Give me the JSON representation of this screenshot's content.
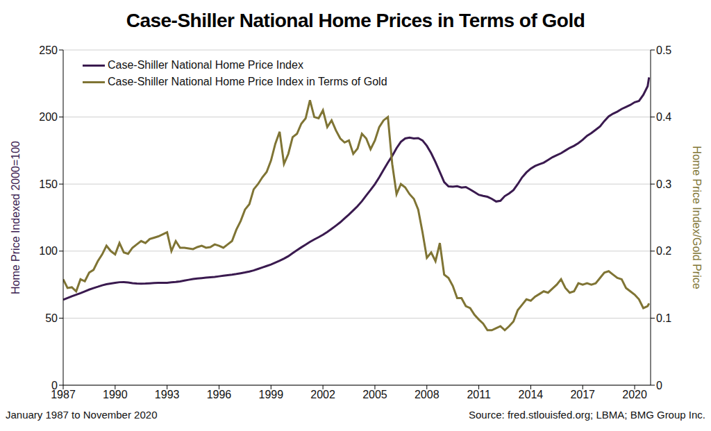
{
  "chart_data": {
    "type": "line",
    "title": "Case-Shiller National Home Prices in Terms of Gold",
    "ylabel": "Home Price Indexed 2000=100",
    "y2label": "Home Price Index/Gold Price",
    "annotations": [
      "January 1987 to November 2020",
      "Source: fred.stlouisfed.org; LBMA; BMG Group Inc."
    ],
    "x": [
      1987,
      1987.25,
      1987.5,
      1987.75,
      1988,
      1988.25,
      1988.5,
      1988.75,
      1989,
      1989.25,
      1989.5,
      1989.75,
      1990,
      1990.25,
      1990.5,
      1990.75,
      1991,
      1991.25,
      1991.5,
      1991.75,
      1992,
      1992.25,
      1992.5,
      1992.75,
      1993,
      1993.25,
      1993.5,
      1993.75,
      1994,
      1994.25,
      1994.5,
      1994.75,
      1995,
      1995.25,
      1995.5,
      1995.75,
      1996,
      1996.25,
      1996.5,
      1996.75,
      1997,
      1997.25,
      1997.5,
      1997.75,
      1998,
      1998.25,
      1998.5,
      1998.75,
      1999,
      1999.25,
      1999.5,
      1999.75,
      2000,
      2000.25,
      2000.5,
      2000.75,
      2001,
      2001.25,
      2001.5,
      2001.75,
      2002,
      2002.25,
      2002.5,
      2002.75,
      2003,
      2003.25,
      2003.5,
      2003.75,
      2004,
      2004.25,
      2004.5,
      2004.75,
      2005,
      2005.25,
      2005.5,
      2005.75,
      2006,
      2006.25,
      2006.5,
      2006.75,
      2007,
      2007.25,
      2007.5,
      2007.75,
      2008,
      2008.25,
      2008.5,
      2008.75,
      2009,
      2009.25,
      2009.5,
      2009.75,
      2010,
      2010.25,
      2010.5,
      2010.75,
      2011,
      2011.25,
      2011.5,
      2011.75,
      2012,
      2012.25,
      2012.5,
      2012.75,
      2013,
      2013.25,
      2013.5,
      2013.75,
      2014,
      2014.25,
      2014.5,
      2014.75,
      2015,
      2015.25,
      2015.5,
      2015.75,
      2016,
      2016.25,
      2016.5,
      2016.75,
      2017,
      2017.25,
      2017.5,
      2017.75,
      2018,
      2018.25,
      2018.5,
      2018.75,
      2019,
      2019.25,
      2019.5,
      2019.75,
      2020,
      2020.25,
      2020.5,
      2020.75,
      2020.83
    ],
    "series": [
      {
        "name": "Case-Shiller National Home Price Index",
        "color": "#3a1a4f",
        "values": [
          63.7,
          65.0,
          66.3,
          67.5,
          68.6,
          70.0,
          71.3,
          72.4,
          73.4,
          74.5,
          75.3,
          75.8,
          76.3,
          76.8,
          76.9,
          76.6,
          76.1,
          75.8,
          75.7,
          75.8,
          76.0,
          76.2,
          76.3,
          76.3,
          76.4,
          76.7,
          77.0,
          77.4,
          78.0,
          78.6,
          79.2,
          79.6,
          79.9,
          80.2,
          80.5,
          80.8,
          81.2,
          81.6,
          82.0,
          82.4,
          82.9,
          83.5,
          84.1,
          84.8,
          85.6,
          86.7,
          87.8,
          88.9,
          90.0,
          91.4,
          92.8,
          94.4,
          96.2,
          98.5,
          100.7,
          102.8,
          104.8,
          106.9,
          108.7,
          110.4,
          112.2,
          114.3,
          116.6,
          119.0,
          121.5,
          124.4,
          127.3,
          130.4,
          133.5,
          137.2,
          141.5,
          145.6,
          149.9,
          155.0,
          160.6,
          166.0,
          171.0,
          176.8,
          181.5,
          184.0,
          184.6,
          184.0,
          184.3,
          182.5,
          178.5,
          173.0,
          166.3,
          159.0,
          151.5,
          148.3,
          148.0,
          148.4,
          147.4,
          147.8,
          146.0,
          144.0,
          142.0,
          141.2,
          140.5,
          139.0,
          137.0,
          137.5,
          141.0,
          143.0,
          145.5,
          150.0,
          155.0,
          158.7,
          161.5,
          163.5,
          164.8,
          166.0,
          168.0,
          170.0,
          171.5,
          173.0,
          175.0,
          177.0,
          178.5,
          180.5,
          183.0,
          186.0,
          188.0,
          190.5,
          193.0,
          197.0,
          200.5,
          202.5,
          204.0,
          206.0,
          207.5,
          209.0,
          211.0,
          212.0,
          216.5,
          223.0,
          229.5
        ]
      },
      {
        "name": "Case-Shiller National Home Price Index in Terms of Gold",
        "color": "#7f7434",
        "axis": "y2",
        "values": [
          0.158,
          0.145,
          0.146,
          0.14,
          0.158,
          0.155,
          0.168,
          0.172,
          0.185,
          0.195,
          0.208,
          0.2,
          0.195,
          0.212,
          0.198,
          0.196,
          0.205,
          0.21,
          0.215,
          0.212,
          0.218,
          0.22,
          0.222,
          0.225,
          0.228,
          0.2,
          0.215,
          0.205,
          0.205,
          0.204,
          0.203,
          0.206,
          0.208,
          0.205,
          0.206,
          0.21,
          0.208,
          0.205,
          0.21,
          0.215,
          0.232,
          0.245,
          0.262,
          0.27,
          0.292,
          0.3,
          0.31,
          0.318,
          0.335,
          0.36,
          0.378,
          0.33,
          0.345,
          0.37,
          0.375,
          0.39,
          0.398,
          0.425,
          0.4,
          0.398,
          0.41,
          0.385,
          0.395,
          0.38,
          0.368,
          0.362,
          0.365,
          0.345,
          0.353,
          0.375,
          0.368,
          0.352,
          0.365,
          0.385,
          0.395,
          0.4,
          0.33,
          0.285,
          0.3,
          0.295,
          0.285,
          0.278,
          0.262,
          0.228,
          0.19,
          0.198,
          0.185,
          0.212,
          0.165,
          0.16,
          0.148,
          0.13,
          0.13,
          0.118,
          0.115,
          0.105,
          0.098,
          0.092,
          0.082,
          0.082,
          0.085,
          0.088,
          0.082,
          0.088,
          0.095,
          0.112,
          0.12,
          0.128,
          0.126,
          0.132,
          0.136,
          0.14,
          0.138,
          0.144,
          0.15,
          0.158,
          0.145,
          0.138,
          0.14,
          0.152,
          0.15,
          0.152,
          0.15,
          0.152,
          0.16,
          0.168,
          0.17,
          0.165,
          0.16,
          0.158,
          0.145,
          0.14,
          0.135,
          0.128,
          0.115,
          0.118,
          0.122
        ]
      }
    ],
    "xlim": [
      1987,
      2020.92
    ],
    "xticks": [
      1987,
      1990,
      1993,
      1996,
      1999,
      2002,
      2005,
      2008,
      2011,
      2014,
      2017,
      2020
    ],
    "ylim": [
      0,
      250
    ],
    "yticks": [
      0,
      50,
      100,
      150,
      200,
      250
    ],
    "y2lim": [
      0,
      0.5
    ],
    "y2ticks": [
      0,
      0.1,
      0.2,
      0.3,
      0.4,
      0.5
    ],
    "grid": true,
    "legend": "upper left"
  }
}
